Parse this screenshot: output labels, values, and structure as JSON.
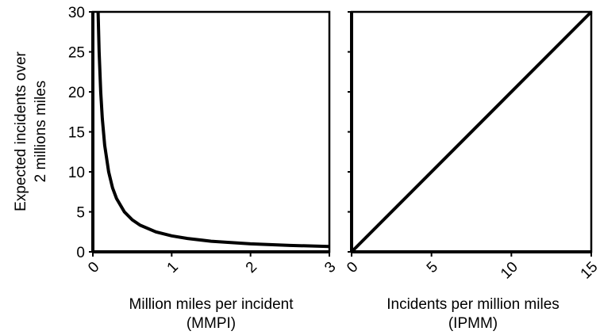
{
  "chart_data": [
    {
      "type": "line",
      "title": "",
      "xlabel": "Million miles per incident",
      "xlabel_line2": "(MMPI)",
      "ylabel": "Expected incidents over",
      "ylabel_line2": "2 millions miles",
      "xlim": [
        0,
        3
      ],
      "ylim": [
        0,
        30
      ],
      "x_ticks": [
        "0",
        "1",
        "2",
        "3"
      ],
      "y_ticks": [
        "0",
        "5",
        "10",
        "15",
        "20",
        "25",
        "30"
      ],
      "grid": false,
      "series": [
        {
          "x": [
            0.066,
            0.08,
            0.1,
            0.12,
            0.15,
            0.2,
            0.25,
            0.3,
            0.4,
            0.5,
            0.6,
            0.8,
            1.0,
            1.2,
            1.5,
            2.0,
            2.5,
            3.0
          ],
          "y": [
            30.3,
            25.0,
            20.0,
            16.67,
            13.33,
            10.0,
            8.0,
            6.67,
            5.0,
            4.0,
            3.33,
            2.5,
            2.0,
            1.67,
            1.33,
            1.0,
            0.8,
            0.67
          ]
        }
      ]
    },
    {
      "type": "line",
      "title": "",
      "xlabel": "Incidents per million miles",
      "xlabel_line2": "(IPMM)",
      "ylabel": "",
      "xlim": [
        0,
        15
      ],
      "ylim": [
        0,
        30
      ],
      "x_ticks": [
        "0",
        "5",
        "10",
        "15"
      ],
      "grid": false,
      "series": [
        {
          "x": [
            0,
            15
          ],
          "y": [
            0,
            30
          ]
        }
      ]
    }
  ]
}
